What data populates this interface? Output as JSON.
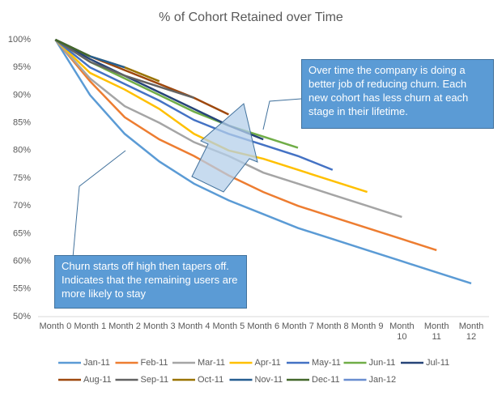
{
  "chart_data": {
    "type": "line",
    "title": "% of Cohort Retained over Time",
    "categories": [
      "Month 0",
      "Month 1",
      "Month 2",
      "Month 3",
      "Month 4",
      "Month 5",
      "Month 6",
      "Month 7",
      "Month 8",
      "Month 9",
      "Month 10",
      "Month 11",
      "Month 12"
    ],
    "ylim": [
      50,
      100
    ],
    "yticks": [
      {
        "value": 50,
        "label": "50%"
      },
      {
        "value": 55,
        "label": "55%"
      },
      {
        "value": 60,
        "label": "60%"
      },
      {
        "value": 65,
        "label": "65%"
      },
      {
        "value": 70,
        "label": "70%"
      },
      {
        "value": 75,
        "label": "75%"
      },
      {
        "value": 80,
        "label": "80%"
      },
      {
        "value": 85,
        "label": "85%"
      },
      {
        "value": 90,
        "label": "90%"
      },
      {
        "value": 95,
        "label": "95%"
      },
      {
        "value": 100,
        "label": "100%"
      }
    ],
    "grid": false,
    "series": [
      {
        "name": "Jan-11",
        "color": "#5b9bd5",
        "values": [
          100,
          90,
          83,
          78,
          74,
          71,
          68.5,
          66,
          64,
          62,
          60,
          58,
          56
        ]
      },
      {
        "name": "Feb-11",
        "color": "#ed7d31",
        "values": [
          100,
          92.5,
          86,
          82,
          79,
          75.5,
          72.5,
          70,
          68,
          66,
          64,
          62,
          null
        ]
      },
      {
        "name": "Mar-11",
        "color": "#a5a5a5",
        "values": [
          100,
          93,
          88,
          85,
          81.5,
          79,
          76,
          74,
          72,
          70,
          68,
          null,
          null
        ]
      },
      {
        "name": "Apr-11",
        "color": "#ffc000",
        "values": [
          100,
          94,
          91,
          87.5,
          83,
          80,
          78.5,
          76.5,
          74.5,
          72.5,
          null,
          null,
          null
        ]
      },
      {
        "name": "May-11",
        "color": "#4472c4",
        "values": [
          100,
          95,
          92,
          89,
          85.5,
          83,
          81,
          79,
          76.5,
          null,
          null,
          null,
          null
        ]
      },
      {
        "name": "Jun-11",
        "color": "#70ad47",
        "values": [
          100,
          96,
          93,
          90,
          87,
          84.5,
          82.5,
          80.5,
          null,
          null,
          null,
          null,
          null
        ]
      },
      {
        "name": "Jul-11",
        "color": "#264478",
        "values": [
          100,
          96.5,
          93.5,
          90.5,
          87.5,
          84.5,
          82,
          null,
          null,
          null,
          null,
          null,
          null
        ]
      },
      {
        "name": "Aug-11",
        "color": "#9e480e",
        "values": [
          100,
          97,
          94.5,
          92,
          89.5,
          86.5,
          null,
          null,
          null,
          null,
          null,
          null,
          null
        ]
      },
      {
        "name": "Sep-11",
        "color": "#636363",
        "values": [
          100,
          96,
          93.5,
          91.5,
          89.5,
          null,
          null,
          null,
          null,
          null,
          null,
          null,
          null
        ]
      },
      {
        "name": "Oct-11",
        "color": "#997300",
        "values": [
          100,
          97,
          95,
          92.5,
          null,
          null,
          null,
          null,
          null,
          null,
          null,
          null,
          null
        ]
      },
      {
        "name": "Nov-11",
        "color": "#255e91",
        "values": [
          100,
          97,
          95,
          null,
          null,
          null,
          null,
          null,
          null,
          null,
          null,
          null,
          null
        ]
      },
      {
        "name": "Dec-11",
        "color": "#43682b",
        "values": [
          100,
          97,
          null,
          null,
          null,
          null,
          null,
          null,
          null,
          null,
          null,
          null,
          null
        ]
      },
      {
        "name": "Jan-12",
        "color": "#698ed0",
        "values": [
          100,
          null,
          null,
          null,
          null,
          null,
          null,
          null,
          null,
          null,
          null,
          null,
          null
        ]
      }
    ],
    "annotations": [
      "Over time the company is doing a better job of reducing churn. Each new cohort has less churn at each stage in their lifetime.",
      "Churn starts off high then tapers off. Indicates that the remaining users are more likely to stay"
    ]
  }
}
